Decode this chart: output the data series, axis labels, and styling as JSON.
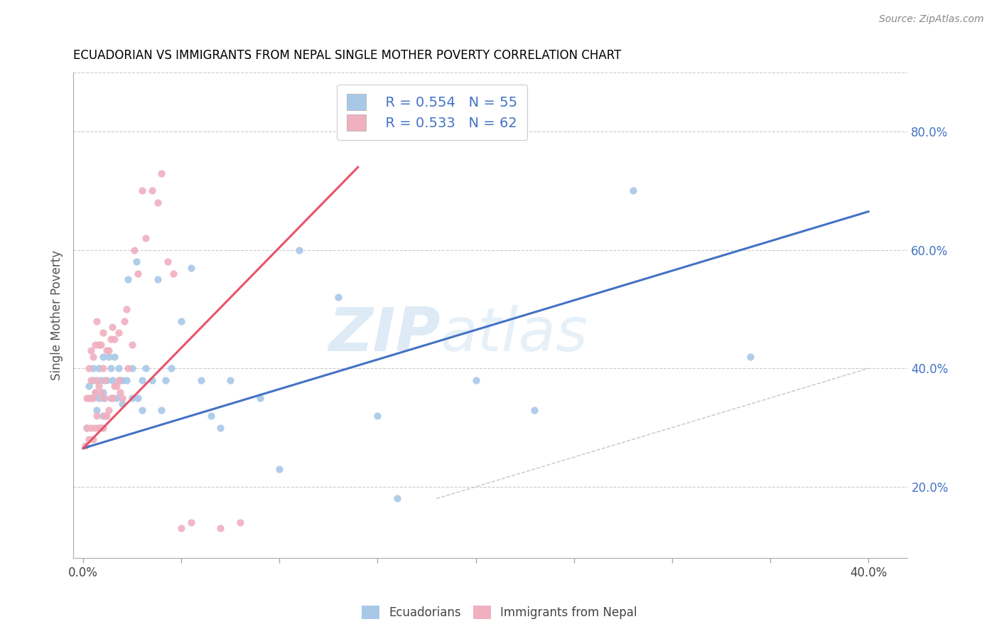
{
  "title": "ECUADORIAN VS IMMIGRANTS FROM NEPAL SINGLE MOTHER POVERTY CORRELATION CHART",
  "source": "Source: ZipAtlas.com",
  "xlabel_ticks_labeled": [
    "0.0%",
    "40.0%"
  ],
  "xlabel_labeled_vals": [
    0.0,
    0.4
  ],
  "xlabel_minor_vals": [
    0.05,
    0.1,
    0.15,
    0.2,
    0.25,
    0.3,
    0.35
  ],
  "ylabel_left": "Single Mother Poverty",
  "ylabel_right_ticks": [
    "20.0%",
    "40.0%",
    "60.0%",
    "80.0%"
  ],
  "ylabel_right_vals": [
    0.2,
    0.4,
    0.6,
    0.8
  ],
  "blue_color": "#a8c8e8",
  "pink_color": "#f0b0c0",
  "blue_line_color": "#4472c4",
  "pink_line_color": "#e8546a",
  "diag_line_color": "#b8b8b8",
  "watermark_zip": "ZIP",
  "watermark_atlas": "atlas",
  "blue_scatter_x": [
    0.002,
    0.003,
    0.004,
    0.005,
    0.005,
    0.006,
    0.007,
    0.008,
    0.008,
    0.009,
    0.01,
    0.01,
    0.01,
    0.011,
    0.012,
    0.013,
    0.014,
    0.015,
    0.015,
    0.016,
    0.017,
    0.018,
    0.019,
    0.02,
    0.02,
    0.022,
    0.023,
    0.025,
    0.025,
    0.027,
    0.028,
    0.03,
    0.03,
    0.032,
    0.035,
    0.038,
    0.04,
    0.042,
    0.045,
    0.05,
    0.055,
    0.06,
    0.065,
    0.07,
    0.075,
    0.09,
    0.1,
    0.11,
    0.13,
    0.15,
    0.16,
    0.2,
    0.23,
    0.28,
    0.34
  ],
  "blue_scatter_y": [
    0.3,
    0.37,
    0.35,
    0.38,
    0.4,
    0.36,
    0.33,
    0.35,
    0.4,
    0.38,
    0.32,
    0.36,
    0.42,
    0.35,
    0.38,
    0.42,
    0.4,
    0.35,
    0.38,
    0.42,
    0.35,
    0.4,
    0.38,
    0.34,
    0.38,
    0.38,
    0.55,
    0.35,
    0.4,
    0.58,
    0.35,
    0.33,
    0.38,
    0.4,
    0.38,
    0.55,
    0.33,
    0.38,
    0.4,
    0.48,
    0.57,
    0.38,
    0.32,
    0.3,
    0.38,
    0.35,
    0.23,
    0.6,
    0.52,
    0.32,
    0.18,
    0.38,
    0.33,
    0.7,
    0.42
  ],
  "pink_scatter_x": [
    0.001,
    0.002,
    0.002,
    0.003,
    0.003,
    0.003,
    0.004,
    0.004,
    0.004,
    0.005,
    0.005,
    0.005,
    0.006,
    0.006,
    0.006,
    0.007,
    0.007,
    0.007,
    0.008,
    0.008,
    0.008,
    0.009,
    0.009,
    0.009,
    0.01,
    0.01,
    0.01,
    0.01,
    0.011,
    0.011,
    0.012,
    0.012,
    0.013,
    0.013,
    0.014,
    0.014,
    0.015,
    0.015,
    0.016,
    0.016,
    0.017,
    0.018,
    0.018,
    0.019,
    0.02,
    0.021,
    0.022,
    0.023,
    0.025,
    0.026,
    0.028,
    0.03,
    0.032,
    0.035,
    0.038,
    0.04,
    0.043,
    0.046,
    0.05,
    0.055,
    0.07,
    0.08
  ],
  "pink_scatter_y": [
    0.27,
    0.3,
    0.35,
    0.28,
    0.35,
    0.4,
    0.3,
    0.38,
    0.43,
    0.28,
    0.35,
    0.42,
    0.3,
    0.36,
    0.44,
    0.32,
    0.38,
    0.48,
    0.3,
    0.37,
    0.44,
    0.3,
    0.36,
    0.44,
    0.3,
    0.35,
    0.4,
    0.46,
    0.32,
    0.38,
    0.32,
    0.43,
    0.33,
    0.43,
    0.35,
    0.45,
    0.35,
    0.47,
    0.37,
    0.45,
    0.37,
    0.38,
    0.46,
    0.36,
    0.35,
    0.48,
    0.5,
    0.4,
    0.44,
    0.6,
    0.56,
    0.7,
    0.62,
    0.7,
    0.68,
    0.73,
    0.58,
    0.56,
    0.13,
    0.14,
    0.13,
    0.14
  ],
  "blue_trend_x": [
    0.0,
    0.4
  ],
  "blue_trend_y": [
    0.265,
    0.665
  ],
  "pink_trend_x": [
    0.0,
    0.14
  ],
  "pink_trend_y": [
    0.265,
    0.74
  ],
  "diag_trend_x": [
    0.18,
    0.4
  ],
  "diag_trend_y": [
    0.18,
    0.4
  ],
  "xlim": [
    -0.005,
    0.42
  ],
  "ylim": [
    0.08,
    0.9
  ]
}
